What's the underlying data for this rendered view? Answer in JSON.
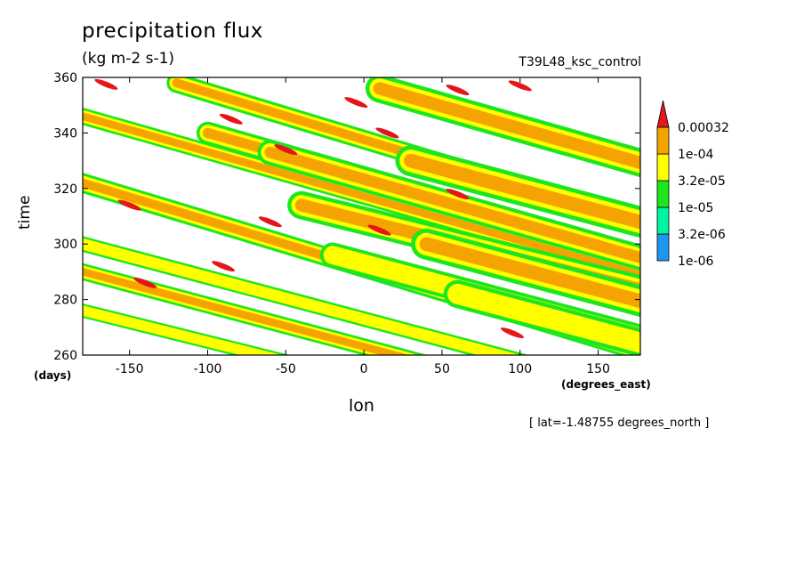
{
  "title": "precipitation flux",
  "units": "(kg m-2 s-1)",
  "run_name": "T39L48_ksc_control",
  "footnote": "[ lat=-1.48755 degrees_north ]",
  "colors": {
    "red": "#e5161a",
    "orange": "#f5a300",
    "yellow": "#ffff00",
    "green": "#1ee61e",
    "teal": "#00f5a0",
    "blue": "#1e96f0"
  },
  "chart_data": {
    "type": "heatmap",
    "subtype": "filled contour (Hovmoller)",
    "title": "precipitation flux",
    "subtitle": "(kg m-2 s-1)",
    "xlabel": "lon",
    "xunits": "(degrees_east)",
    "ylabel": "time",
    "yunits": "(days)",
    "xlim": [
      -180,
      177
    ],
    "ylim": [
      260,
      360
    ],
    "xticks": [
      -150,
      -100,
      -50,
      0,
      50,
      100,
      150
    ],
    "yticks": [
      260,
      280,
      300,
      320,
      340,
      360
    ],
    "colorbar_levels": [
      "1e-06",
      "3.2e-06",
      "1e-05",
      "3.2e-05",
      "1e-04",
      "0.00032"
    ],
    "colorbar_colors": [
      "#1e96f0",
      "#00f5a0",
      "#1ee61e",
      "#ffff00",
      "#f5a300",
      "#e5161a"
    ],
    "bands": [
      {
        "lon_start": -180,
        "t_start": 346,
        "slope": -0.16,
        "width_lon": 60,
        "level": 4
      },
      {
        "lon_start": -180,
        "t_start": 322,
        "slope": -0.17,
        "width_lon": 70,
        "level": 4
      },
      {
        "lon_start": -180,
        "t_start": 300,
        "slope": -0.15,
        "width_lon": 55,
        "level": 3
      },
      {
        "lon_start": -180,
        "t_start": 290,
        "slope": -0.15,
        "width_lon": 60,
        "level": 4
      },
      {
        "lon_start": -180,
        "t_start": 276,
        "slope": -0.14,
        "width_lon": 50,
        "level": 3
      },
      {
        "lon_start": -120,
        "t_start": 358,
        "slope": -0.17,
        "width_lon": 70,
        "level": 4
      },
      {
        "lon_start": -100,
        "t_start": 340,
        "slope": -0.16,
        "width_lon": 80,
        "level": 4
      },
      {
        "lon_start": -60,
        "t_start": 333,
        "slope": -0.16,
        "width_lon": 90,
        "level": 4
      },
      {
        "lon_start": -40,
        "t_start": 314,
        "slope": -0.14,
        "width_lon": 100,
        "level": 4
      },
      {
        "lon_start": -20,
        "t_start": 296,
        "slope": -0.15,
        "width_lon": 90,
        "level": 3
      },
      {
        "lon_start": 10,
        "t_start": 356,
        "slope": -0.16,
        "width_lon": 100,
        "level": 4
      },
      {
        "lon_start": 30,
        "t_start": 330,
        "slope": -0.15,
        "width_lon": 110,
        "level": 4
      },
      {
        "lon_start": 40,
        "t_start": 300,
        "slope": -0.15,
        "width_lon": 110,
        "level": 4
      },
      {
        "lon_start": 60,
        "t_start": 282,
        "slope": -0.15,
        "width_lon": 100,
        "level": 3
      }
    ],
    "maxima": [
      {
        "lon": -165,
        "t": 357.5,
        "level": 5
      },
      {
        "lon": -85,
        "t": 345,
        "level": 5
      },
      {
        "lon": -50,
        "t": 334,
        "level": 5
      },
      {
        "lon": -5,
        "t": 351,
        "level": 5
      },
      {
        "lon": 15,
        "t": 340,
        "level": 5
      },
      {
        "lon": 60,
        "t": 318,
        "level": 5
      },
      {
        "lon": 60,
        "t": 355.5,
        "level": 5
      },
      {
        "lon": -150,
        "t": 314,
        "level": 5
      },
      {
        "lon": 10,
        "t": 305,
        "level": 5
      },
      {
        "lon": -60,
        "t": 308,
        "level": 5
      },
      {
        "lon": -90,
        "t": 292,
        "level": 5
      },
      {
        "lon": -140,
        "t": 286,
        "level": 5
      },
      {
        "lon": 95,
        "t": 268,
        "level": 5
      },
      {
        "lon": 100,
        "t": 357,
        "level": 5
      }
    ]
  }
}
